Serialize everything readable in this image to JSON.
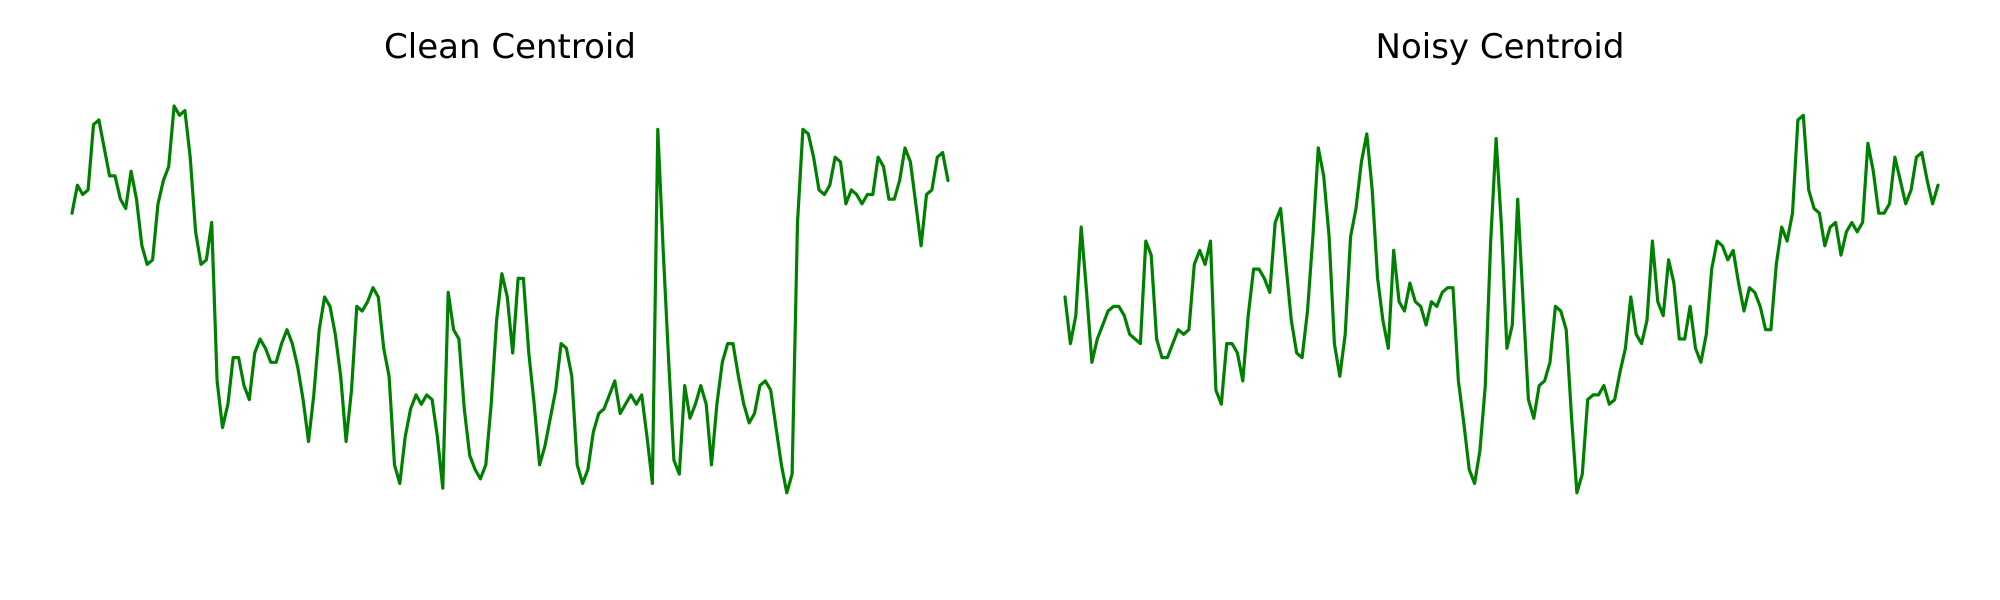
{
  "chart_data": [
    {
      "type": "line",
      "title": "Clean Centroid",
      "xlabel": "",
      "ylabel": "",
      "axes_visible": false,
      "grid": false,
      "color": "#008000",
      "ylim": [
        0.0,
        1.0
      ],
      "values": [
        0.74,
        0.8,
        0.78,
        0.79,
        0.93,
        0.94,
        0.88,
        0.82,
        0.82,
        0.77,
        0.75,
        0.83,
        0.77,
        0.67,
        0.63,
        0.64,
        0.76,
        0.81,
        0.84,
        0.97,
        0.95,
        0.96,
        0.86,
        0.7,
        0.63,
        0.64,
        0.72,
        0.38,
        0.28,
        0.33,
        0.43,
        0.43,
        0.37,
        0.34,
        0.44,
        0.47,
        0.45,
        0.42,
        0.42,
        0.46,
        0.49,
        0.46,
        0.41,
        0.34,
        0.25,
        0.35,
        0.49,
        0.56,
        0.54,
        0.48,
        0.39,
        0.25,
        0.36,
        0.54,
        0.53,
        0.55,
        0.58,
        0.56,
        0.45,
        0.39,
        0.2,
        0.16,
        0.26,
        0.32,
        0.35,
        0.33,
        0.35,
        0.34,
        0.26,
        0.15,
        0.57,
        0.49,
        0.47,
        0.32,
        0.22,
        0.19,
        0.17,
        0.2,
        0.33,
        0.51,
        0.61,
        0.56,
        0.44,
        0.6,
        0.6,
        0.44,
        0.33,
        0.2,
        0.24,
        0.3,
        0.36,
        0.46,
        0.45,
        0.39,
        0.2,
        0.16,
        0.19,
        0.27,
        0.31,
        0.32,
        0.35,
        0.38,
        0.31,
        0.33,
        0.35,
        0.33,
        0.35,
        0.26,
        0.16,
        0.92,
        0.66,
        0.43,
        0.21,
        0.18,
        0.37,
        0.3,
        0.33,
        0.37,
        0.33,
        0.2,
        0.33,
        0.42,
        0.46,
        0.46,
        0.39,
        0.33,
        0.29,
        0.31,
        0.37,
        0.38,
        0.36,
        0.28,
        0.2,
        0.14,
        0.18,
        0.72,
        0.92,
        0.91,
        0.86,
        0.79,
        0.78,
        0.8,
        0.86,
        0.85,
        0.76,
        0.79,
        0.78,
        0.76,
        0.78,
        0.78,
        0.86,
        0.84,
        0.77,
        0.77,
        0.81,
        0.88,
        0.85,
        0.76,
        0.67,
        0.78,
        0.79,
        0.86,
        0.87,
        0.81
      ]
    },
    {
      "type": "line",
      "title": "Noisy Centroid",
      "xlabel": "",
      "ylabel": "",
      "axes_visible": false,
      "grid": false,
      "color": "#008000",
      "ylim": [
        0.0,
        1.0
      ],
      "values": [
        0.56,
        0.46,
        0.52,
        0.71,
        0.57,
        0.42,
        0.47,
        0.5,
        0.53,
        0.54,
        0.54,
        0.52,
        0.48,
        0.47,
        0.46,
        0.68,
        0.65,
        0.47,
        0.43,
        0.43,
        0.46,
        0.49,
        0.48,
        0.49,
        0.63,
        0.66,
        0.63,
        0.68,
        0.36,
        0.33,
        0.46,
        0.46,
        0.44,
        0.38,
        0.52,
        0.62,
        0.62,
        0.6,
        0.57,
        0.72,
        0.75,
        0.63,
        0.51,
        0.44,
        0.43,
        0.53,
        0.69,
        0.88,
        0.82,
        0.69,
        0.46,
        0.39,
        0.48,
        0.69,
        0.75,
        0.85,
        0.91,
        0.79,
        0.6,
        0.51,
        0.45,
        0.66,
        0.55,
        0.53,
        0.59,
        0.55,
        0.54,
        0.5,
        0.55,
        0.54,
        0.57,
        0.58,
        0.58,
        0.38,
        0.29,
        0.19,
        0.16,
        0.23,
        0.37,
        0.68,
        0.9,
        0.71,
        0.45,
        0.5,
        0.77,
        0.55,
        0.34,
        0.3,
        0.37,
        0.38,
        0.42,
        0.54,
        0.53,
        0.49,
        0.3,
        0.14,
        0.18,
        0.34,
        0.35,
        0.35,
        0.37,
        0.33,
        0.34,
        0.4,
        0.45,
        0.56,
        0.48,
        0.46,
        0.51,
        0.68,
        0.55,
        0.52,
        0.64,
        0.59,
        0.47,
        0.47,
        0.54,
        0.45,
        0.42,
        0.48,
        0.62,
        0.68,
        0.67,
        0.64,
        0.66,
        0.59,
        0.53,
        0.58,
        0.57,
        0.54,
        0.49,
        0.49,
        0.63,
        0.71,
        0.68,
        0.74,
        0.94,
        0.95,
        0.79,
        0.75,
        0.74,
        0.67,
        0.71,
        0.72,
        0.65,
        0.7,
        0.72,
        0.7,
        0.72,
        0.89,
        0.83,
        0.74,
        0.74,
        0.76,
        0.86,
        0.81,
        0.76,
        0.79,
        0.86,
        0.87,
        0.81,
        0.76,
        0.8
      ]
    }
  ]
}
